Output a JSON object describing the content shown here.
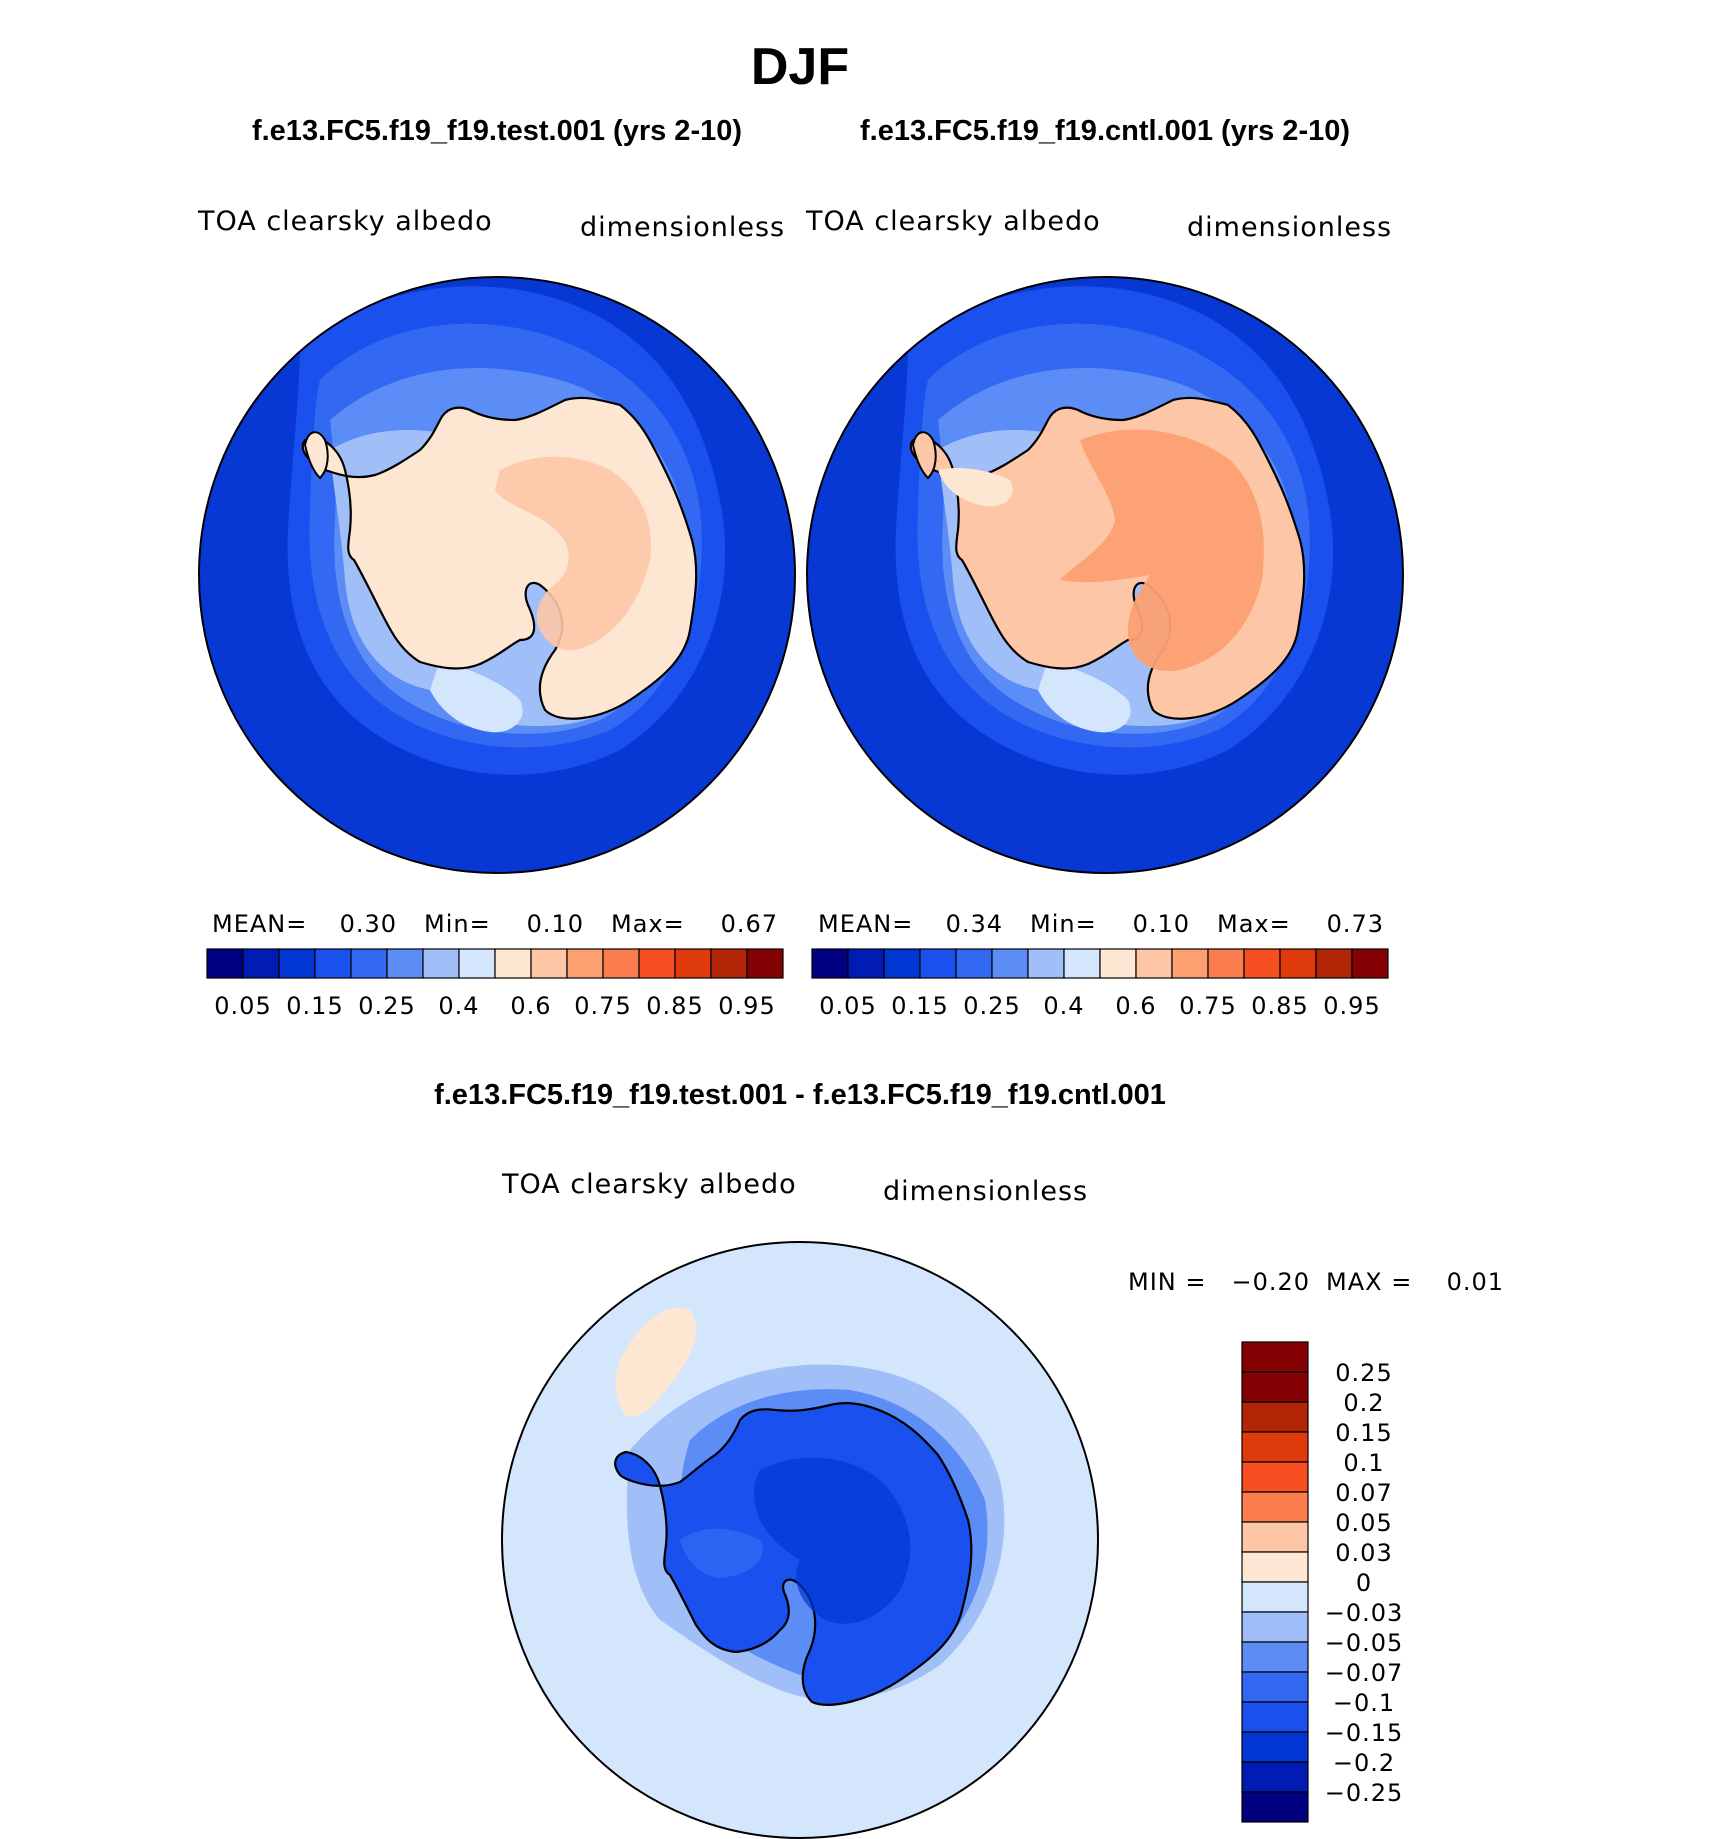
{
  "season": "DJF",
  "test_case": "f.e13.FC5.f19_f19.test.001 (yrs 2-10)",
  "cntl_case": "f.e13.FC5.f19_f19.cntl.001 (yrs 2-10)",
  "diff_title": "f.e13.FC5.f19_f19.test.001 - f.e13.FC5.f19_f19.cntl.001",
  "colors": {
    "palette": [
      "#000080",
      "#001cb2",
      "#0236d2",
      "#1a50ee",
      "#3268f2",
      "#5c8cf6",
      "#a0bef8",
      "#d3e6fc",
      "#fde6d2",
      "#fdc6a6",
      "#fca072",
      "#fb7c4e",
      "#f54f22",
      "#df3a0c",
      "#b02606",
      "#840204"
    ],
    "diff_palette": [
      "#840204",
      "#b02606",
      "#df3a0c",
      "#f54f22",
      "#fb7c4e",
      "#fdc6a6",
      "#fde6d2",
      "#d3e6fc",
      "#a0bef8",
      "#5c8cf6",
      "#3268f2",
      "#1a50ee",
      "#0236d2",
      "#001cb2",
      "#000080"
    ],
    "ocean": "#0838d4",
    "diff_ocean": "#d3e6fc"
  },
  "chart_data": [
    {
      "type": "heatmap",
      "projection": "south polar stereographic",
      "subtitle_left": "TOA clearsky albedo",
      "subtitle_right": "dimensionless",
      "stats": {
        "mean_label": "MEAN=",
        "mean": "0.30",
        "min_label": "Min=",
        "min": "0.10",
        "max_label": "Max=",
        "max": "0.67"
      },
      "colorbar_orientation": "horizontal",
      "levels": [
        0.05,
        0.1,
        0.15,
        0.2,
        0.25,
        0.3,
        0.4,
        0.5,
        0.6,
        0.7,
        0.75,
        0.8,
        0.85,
        0.9,
        0.95
      ],
      "tick_labels": [
        "0.05",
        "0.15",
        "0.25",
        "0.4",
        "0.6",
        "0.75",
        "0.85",
        "0.95"
      ]
    },
    {
      "type": "heatmap",
      "projection": "south polar stereographic",
      "subtitle_left": "TOA clearsky albedo",
      "subtitle_right": "dimensionless",
      "stats": {
        "mean_label": "MEAN=",
        "mean": "0.34",
        "min_label": "Min=",
        "min": "0.10",
        "max_label": "Max=",
        "max": "0.73"
      },
      "colorbar_orientation": "horizontal",
      "levels": [
        0.05,
        0.1,
        0.15,
        0.2,
        0.25,
        0.3,
        0.4,
        0.5,
        0.6,
        0.7,
        0.75,
        0.8,
        0.85,
        0.9,
        0.95
      ],
      "tick_labels": [
        "0.05",
        "0.15",
        "0.25",
        "0.4",
        "0.6",
        "0.75",
        "0.85",
        "0.95"
      ]
    },
    {
      "type": "heatmap",
      "projection": "south polar stereographic",
      "subtitle_left": "TOA clearsky albedo",
      "subtitle_right": "dimensionless",
      "stats": {
        "min_label": "MIN =",
        "min": "−0.20",
        "max_label": "MAX =",
        "max": "0.01"
      },
      "colorbar_orientation": "vertical",
      "levels": [
        0.25,
        0.2,
        0.15,
        0.1,
        0.07,
        0.05,
        0.03,
        0,
        -0.03,
        -0.05,
        -0.07,
        -0.1,
        -0.15,
        -0.2,
        -0.25
      ],
      "tick_labels": [
        "0.25",
        "0.2",
        "0.15",
        "0.1",
        "0.07",
        "0.05",
        "0.03",
        "0",
        "−0.03",
        "−0.05",
        "−0.07",
        "−0.1",
        "−0.15",
        "−0.2",
        "−0.25"
      ]
    }
  ]
}
